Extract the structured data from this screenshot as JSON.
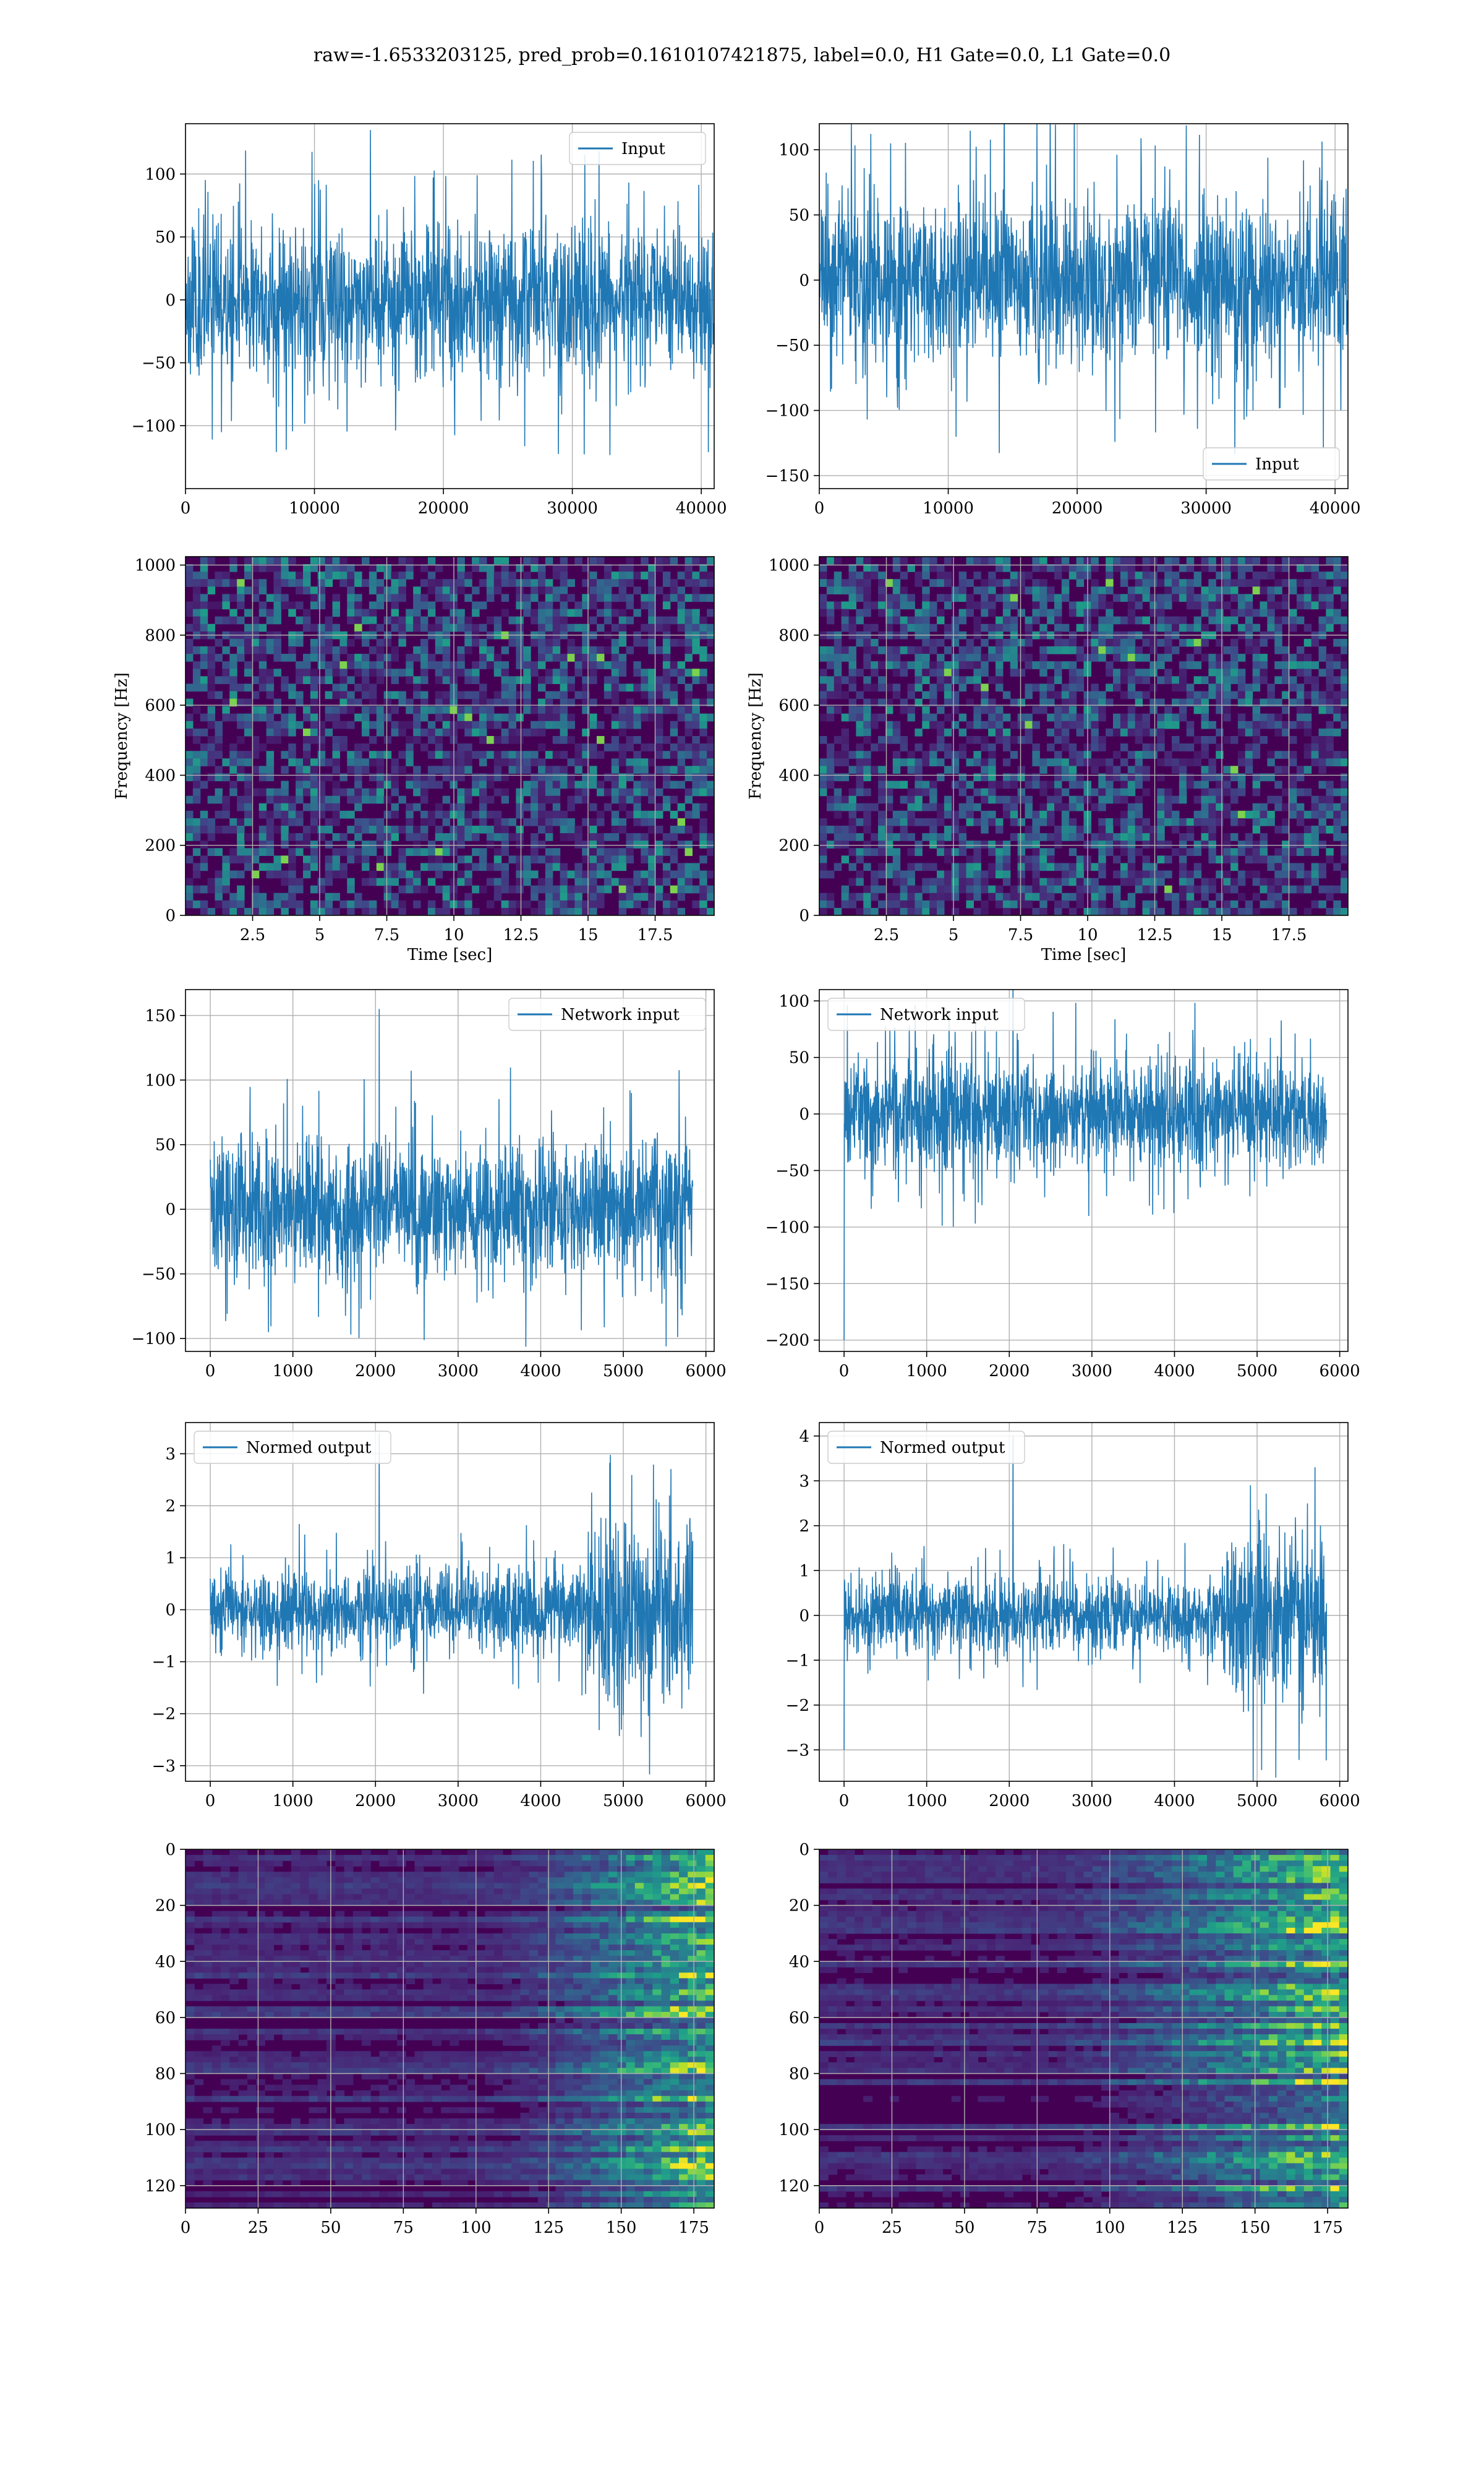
{
  "figure": {
    "title": "raw=-1.6533203125, pred_prob=0.1610107421875, label=0.0, H1 Gate=0.0, L1 Gate=0.0"
  },
  "colors": {
    "line": "#1f77b4",
    "grid": "#b0b0b0",
    "viridis": [
      "#440154",
      "#482878",
      "#3e4989",
      "#31688e",
      "#26828e",
      "#1f9e89",
      "#35b779",
      "#6ece58",
      "#b5de2b",
      "#fde725"
    ]
  },
  "chart_data": [
    {
      "id": "input-h1",
      "type": "line",
      "legend": "Input",
      "legend_loc": "upper right",
      "xlim": [
        0,
        41000
      ],
      "ylim": [
        -150,
        140
      ],
      "xticks": [
        0,
        10000,
        20000,
        30000,
        40000
      ],
      "yticks": [
        -100,
        -50,
        0,
        50,
        100
      ],
      "x_range": [
        0,
        40960
      ],
      "envelope_abs": 75,
      "peak_abs": 135,
      "seed": 11,
      "trend": [
        [
          0,
          1.0
        ],
        [
          1,
          1.0
        ]
      ]
    },
    {
      "id": "input-l1",
      "type": "line",
      "legend": "Input",
      "legend_loc": "lower right",
      "xlim": [
        0,
        41000
      ],
      "ylim": [
        -160,
        120
      ],
      "xticks": [
        0,
        10000,
        20000,
        30000,
        40000
      ],
      "yticks": [
        -150,
        -100,
        -50,
        0,
        50,
        100
      ],
      "x_range": [
        0,
        40960
      ],
      "envelope_abs": 80,
      "peak_abs": 145,
      "seed": 23,
      "trend": [
        [
          0,
          1.0
        ],
        [
          1,
          1.0
        ]
      ]
    },
    {
      "id": "spec-h1",
      "type": "heatmap",
      "xlabel": "Time [sec]",
      "ylabel": "Frequency [Hz]",
      "xlim": [
        0,
        19.7
      ],
      "ylim": [
        0,
        1024
      ],
      "xticks": [
        2.5,
        5.0,
        7.5,
        10.0,
        12.5,
        15.0,
        17.5
      ],
      "yticks": [
        0,
        200,
        400,
        600,
        800,
        1000
      ],
      "seed": 5,
      "mean_level": 0.15,
      "dark_band_hz": [
        480,
        520
      ]
    },
    {
      "id": "spec-l1",
      "type": "heatmap",
      "xlabel": "Time [sec]",
      "ylabel": "Frequency [Hz]",
      "xlim": [
        0,
        19.7
      ],
      "ylim": [
        0,
        1024
      ],
      "xticks": [
        2.5,
        5.0,
        7.5,
        10.0,
        12.5,
        15.0,
        17.5
      ],
      "yticks": [
        0,
        200,
        400,
        600,
        800,
        1000
      ],
      "seed": 9,
      "mean_level": 0.15,
      "dark_band_hz": [
        480,
        520
      ]
    },
    {
      "id": "network-input-h1",
      "type": "line",
      "legend": "Network input",
      "legend_loc": "upper right",
      "xlim": [
        -300,
        6100
      ],
      "ylim": [
        -110,
        170
      ],
      "xticks": [
        0,
        1000,
        2000,
        3000,
        4000,
        5000,
        6000
      ],
      "yticks": [
        -100,
        -50,
        0,
        50,
        100,
        150
      ],
      "x_range": [
        0,
        5840
      ],
      "envelope_abs": 65,
      "peak_abs": 155,
      "seed": 31,
      "trend": [
        [
          0,
          1.0
        ],
        [
          1,
          1.0
        ]
      ]
    },
    {
      "id": "network-input-l1",
      "type": "line",
      "legend": "Network input",
      "legend_loc": "upper left",
      "xlim": [
        -300,
        6100
      ],
      "ylim": [
        -210,
        110
      ],
      "xticks": [
        0,
        1000,
        2000,
        3000,
        4000,
        5000,
        6000
      ],
      "yticks": [
        -200,
        -150,
        -100,
        -50,
        0,
        50,
        100
      ],
      "x_range": [
        0,
        5840
      ],
      "envelope_abs": 60,
      "peak_abs": 120,
      "seed": 47,
      "trend": [
        [
          0,
          1.0
        ],
        [
          1,
          1.0
        ]
      ],
      "spike": [
        0,
        -200
      ]
    },
    {
      "id": "normed-output-h1",
      "type": "line",
      "legend": "Normed output",
      "legend_loc": "upper left",
      "xlim": [
        -300,
        6100
      ],
      "ylim": [
        -3.3,
        3.6
      ],
      "xticks": [
        0,
        1000,
        2000,
        3000,
        4000,
        5000,
        6000
      ],
      "yticks": [
        -3,
        -2,
        -1,
        0,
        1,
        2,
        3
      ],
      "x_range": [
        0,
        5840
      ],
      "envelope_abs": 1.0,
      "peak_abs": 3.4,
      "seed": 53,
      "trend": [
        [
          0,
          1.0
        ],
        [
          0.78,
          1.0
        ],
        [
          0.82,
          2.3
        ],
        [
          1,
          2.2
        ]
      ]
    },
    {
      "id": "normed-output-l1",
      "type": "line",
      "legend": "Normed output",
      "legend_loc": "upper left",
      "xlim": [
        -300,
        6100
      ],
      "ylim": [
        -3.7,
        4.3
      ],
      "xticks": [
        0,
        1000,
        2000,
        3000,
        4000,
        5000,
        6000
      ],
      "yticks": [
        -3,
        -2,
        -1,
        0,
        1,
        2,
        3,
        4
      ],
      "x_range": [
        0,
        5840
      ],
      "envelope_abs": 1.0,
      "peak_abs": 4.0,
      "seed": 67,
      "trend": [
        [
          0,
          1.0
        ],
        [
          0.78,
          1.0
        ],
        [
          0.82,
          2.4
        ],
        [
          1,
          2.2
        ]
      ],
      "spike": [
        0,
        -3
      ]
    },
    {
      "id": "activation-h1",
      "type": "heatmap",
      "xlim": [
        0,
        182
      ],
      "ylim": [
        128,
        0
      ],
      "xticks": [
        0,
        25,
        50,
        75,
        100,
        125,
        150,
        175
      ],
      "yticks": [
        0,
        20,
        40,
        60,
        80,
        100,
        120
      ],
      "seed": 71,
      "rows": 128,
      "cols": 182,
      "ramp_start": 0.55
    },
    {
      "id": "activation-l1",
      "type": "heatmap",
      "xlim": [
        0,
        182
      ],
      "ylim": [
        128,
        0
      ],
      "xticks": [
        0,
        25,
        50,
        75,
        100,
        125,
        150,
        175
      ],
      "yticks": [
        0,
        20,
        40,
        60,
        80,
        100,
        120
      ],
      "seed": 83,
      "rows": 128,
      "cols": 182,
      "ramp_start": 0.4
    }
  ]
}
